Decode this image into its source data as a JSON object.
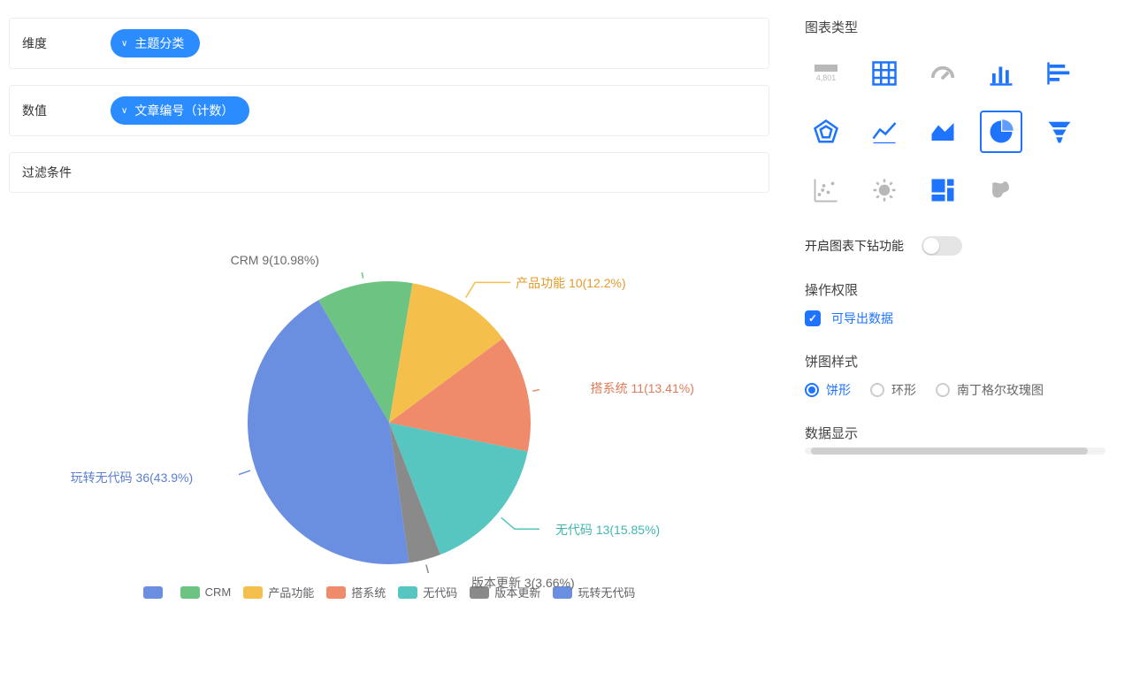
{
  "config": {
    "dimension_label": "维度",
    "dimension_pill": "主题分类",
    "metric_label": "数值",
    "metric_pill": "文章编号（计数）",
    "filter_label": "过滤条件"
  },
  "pie": {
    "type": "pie",
    "center_note": "",
    "slices": [
      {
        "name": "",
        "label": "CRM",
        "value": 9,
        "pct": 10.98,
        "color": "#6dc381",
        "leader": "CRM 9(10.98%)",
        "leader_color": "#6a6a6a"
      },
      {
        "name": "产品功能",
        "label": "产品功能",
        "value": 10,
        "pct": 12.2,
        "color": "#f4c04b",
        "leader": "产品功能 10(12.2%)",
        "leader_color": "#e59a2b"
      },
      {
        "name": "搭系统",
        "label": "搭系统",
        "value": 11,
        "pct": 13.41,
        "color": "#ef8b6b",
        "leader": "搭系统 11(13.41%)",
        "leader_color": "#e07b59"
      },
      {
        "name": "无代码",
        "label": "无代码",
        "value": 13,
        "pct": 15.85,
        "color": "#58c6c0",
        "leader": "无代码 13(15.85%)",
        "leader_color": "#3fb7b0"
      },
      {
        "name": "版本更新",
        "label": "版本更新",
        "value": 3,
        "pct": 3.66,
        "color": "#8a8a8a",
        "leader": "版本更新 3(3.66%)",
        "leader_color": "#6a6a6a"
      },
      {
        "name": "玩转无代码",
        "label": "玩转无代码",
        "value": 36,
        "pct": 43.9,
        "color": "#6a8ee0",
        "leader": "玩转无代码 36(43.9%)",
        "leader_color": "#5b7fd1"
      }
    ],
    "legend_blank_first": true,
    "start_angle_deg": -30,
    "radius": 160,
    "canvas": 340,
    "background_color": "#ffffff"
  },
  "right": {
    "chart_type_title": "图表类型",
    "kpi_sample": "4,801",
    "chart_types": [
      {
        "id": "kpi",
        "active": false
      },
      {
        "id": "table",
        "active": false
      },
      {
        "id": "gauge",
        "active": false
      },
      {
        "id": "bar",
        "active": false
      },
      {
        "id": "hbar",
        "active": false
      },
      {
        "id": "radar",
        "active": false
      },
      {
        "id": "line",
        "active": false
      },
      {
        "id": "area",
        "active": false
      },
      {
        "id": "pie",
        "active": true
      },
      {
        "id": "funnel",
        "active": false
      },
      {
        "id": "scatter",
        "active": false
      },
      {
        "id": "sunburst",
        "active": false
      },
      {
        "id": "treemap",
        "active": false
      },
      {
        "id": "map",
        "active": false
      }
    ],
    "drill_label": "开启图表下钻功能",
    "drill_on": false,
    "perm_title": "操作权限",
    "perm_export_label": "可导出数据",
    "perm_export_checked": true,
    "style_title": "饼图样式",
    "style_options": [
      {
        "label": "饼形",
        "on": true
      },
      {
        "label": "环形",
        "on": false
      },
      {
        "label": "南丁格尔玫瑰图",
        "on": false
      }
    ],
    "data_display_title": "数据显示"
  },
  "colors": {
    "primary": "#1e73ff",
    "pill": "#2b8cff",
    "icon_muted": "#b8b8b8",
    "icon_blue": "#1e73ff"
  }
}
